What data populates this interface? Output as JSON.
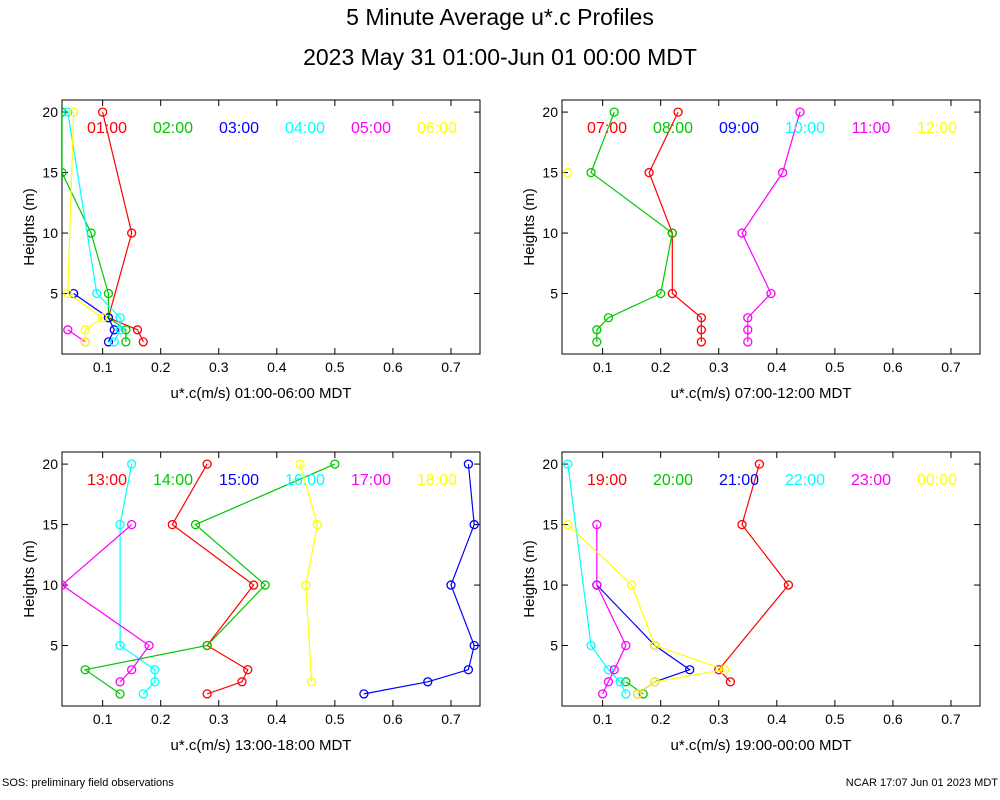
{
  "title": "5 Minute Average u*.c Profiles",
  "subtitle": "2023 May 31 01:00-Jun 01 00:00 MDT",
  "footer_left": "SOS: preliminary field observations",
  "footer_right": "NCAR 17:07 Jun 01 2023 MDT",
  "chart_data": [
    {
      "type": "line",
      "xlabel": "u*.c(m/s) 01:00-06:00 MDT",
      "ylabel": "Heights (m)",
      "xlim": [
        0.03,
        0.75
      ],
      "ylim": [
        0,
        21
      ],
      "xticks": [
        "0.1",
        "0.2",
        "0.3",
        "0.4",
        "0.5",
        "0.6",
        "0.7"
      ],
      "yticks": [
        "5",
        "10",
        "15",
        "20"
      ],
      "series": [
        {
          "name": "01:00",
          "color": "#ff0000",
          "points": [
            [
              0.17,
              1
            ],
            [
              0.16,
              2
            ],
            [
              0.11,
              3
            ],
            [
              0.15,
              10
            ],
            [
              0.1,
              20
            ]
          ]
        },
        {
          "name": "02:00",
          "color": "#00c800",
          "points": [
            [
              0.14,
              1
            ],
            [
              0.14,
              2
            ],
            [
              0.11,
              3
            ],
            [
              0.11,
              5
            ],
            [
              0.08,
              10
            ],
            [
              0.03,
              15
            ],
            [
              0.03,
              20
            ]
          ]
        },
        {
          "name": "03:00",
          "color": "#0000ff",
          "points": [
            [
              0.11,
              1
            ],
            [
              0.12,
              2
            ],
            [
              0.11,
              3
            ],
            [
              0.05,
              5
            ]
          ]
        },
        {
          "name": "04:00",
          "color": "#00ffff",
          "points": [
            [
              0.12,
              1
            ],
            [
              0.13,
              2
            ],
            [
              0.13,
              3
            ],
            [
              0.09,
              5
            ],
            [
              0.04,
              20
            ]
          ]
        },
        {
          "name": "05:00",
          "color": "#ff00ff",
          "points": [
            [
              0.07,
              1
            ],
            [
              0.04,
              2
            ]
          ]
        },
        {
          "name": "06:00",
          "color": "#ffff00",
          "points": [
            [
              0.07,
              1
            ],
            [
              0.07,
              2
            ],
            [
              0.1,
              3
            ],
            [
              0.04,
              5
            ],
            [
              0.05,
              20
            ]
          ]
        }
      ]
    },
    {
      "type": "line",
      "xlabel": "u*.c(m/s) 07:00-12:00 MDT",
      "ylabel": "Heights (m)",
      "xlim": [
        0.03,
        0.75
      ],
      "ylim": [
        0,
        21
      ],
      "xticks": [
        "0.1",
        "0.2",
        "0.3",
        "0.4",
        "0.5",
        "0.6",
        "0.7"
      ],
      "yticks": [
        "5",
        "10",
        "15",
        "20"
      ],
      "series": [
        {
          "name": "07:00",
          "color": "#ff0000",
          "points": [
            [
              0.27,
              1
            ],
            [
              0.27,
              2
            ],
            [
              0.27,
              3
            ],
            [
              0.22,
              5
            ],
            [
              0.22,
              10
            ],
            [
              0.18,
              15
            ],
            [
              0.23,
              20
            ]
          ]
        },
        {
          "name": "08:00",
          "color": "#00c800",
          "points": [
            [
              0.09,
              1
            ],
            [
              0.09,
              2
            ],
            [
              0.11,
              3
            ],
            [
              0.2,
              5
            ],
            [
              0.22,
              10
            ],
            [
              0.08,
              15
            ],
            [
              0.12,
              20
            ]
          ]
        },
        {
          "name": "09:00",
          "color": "#0000ff",
          "points": []
        },
        {
          "name": "10:00",
          "color": "#00ffff",
          "points": []
        },
        {
          "name": "11:00",
          "color": "#ff00ff",
          "points": [
            [
              0.35,
              1
            ],
            [
              0.35,
              2
            ],
            [
              0.35,
              3
            ],
            [
              0.39,
              5
            ],
            [
              0.34,
              10
            ],
            [
              0.41,
              15
            ],
            [
              0.44,
              20
            ]
          ]
        },
        {
          "name": "12:00",
          "color": "#ffff00",
          "points": [
            [
              0.04,
              15
            ]
          ]
        }
      ]
    },
    {
      "type": "line",
      "xlabel": "u*.c(m/s) 13:00-18:00 MDT",
      "ylabel": "Heights (m)",
      "xlim": [
        0.03,
        0.75
      ],
      "ylim": [
        0,
        21
      ],
      "xticks": [
        "0.1",
        "0.2",
        "0.3",
        "0.4",
        "0.5",
        "0.6",
        "0.7"
      ],
      "yticks": [
        "5",
        "10",
        "15",
        "20"
      ],
      "series": [
        {
          "name": "13:00",
          "color": "#ff0000",
          "points": [
            [
              0.28,
              1
            ],
            [
              0.34,
              2
            ],
            [
              0.35,
              3
            ],
            [
              0.28,
              5
            ],
            [
              0.36,
              10
            ],
            [
              0.22,
              15
            ],
            [
              0.28,
              20
            ]
          ]
        },
        {
          "name": "14:00",
          "color": "#00c800",
          "points": [
            [
              0.13,
              1
            ],
            [
              0.07,
              3
            ],
            [
              0.28,
              5
            ],
            [
              0.38,
              10
            ],
            [
              0.26,
              15
            ],
            [
              0.5,
              20
            ]
          ]
        },
        {
          "name": "15:00",
          "color": "#0000ff",
          "points": [
            [
              0.55,
              1
            ],
            [
              0.66,
              2
            ],
            [
              0.73,
              3
            ],
            [
              0.74,
              5
            ],
            [
              0.7,
              10
            ],
            [
              0.74,
              15
            ],
            [
              0.73,
              20
            ]
          ]
        },
        {
          "name": "16:00",
          "color": "#00ffff",
          "points": [
            [
              0.17,
              1
            ],
            [
              0.19,
              2
            ],
            [
              0.19,
              3
            ],
            [
              0.13,
              5
            ],
            [
              0.13,
              15
            ],
            [
              0.15,
              20
            ]
          ]
        },
        {
          "name": "17:00",
          "color": "#ff00ff",
          "points": [
            [
              0.13,
              2
            ],
            [
              0.15,
              3
            ],
            [
              0.18,
              5
            ],
            [
              0.03,
              10
            ],
            [
              0.15,
              15
            ]
          ]
        },
        {
          "name": "18:00",
          "color": "#ffff00",
          "points": [
            [
              0.46,
              2
            ],
            [
              0.45,
              10
            ],
            [
              0.47,
              15
            ],
            [
              0.44,
              20
            ]
          ]
        }
      ]
    },
    {
      "type": "line",
      "xlabel": "u*.c(m/s) 19:00-00:00 MDT",
      "ylabel": "Heights (m)",
      "xlim": [
        0.03,
        0.75
      ],
      "ylim": [
        0,
        21
      ],
      "xticks": [
        "0.1",
        "0.2",
        "0.3",
        "0.4",
        "0.5",
        "0.6",
        "0.7"
      ],
      "yticks": [
        "5",
        "10",
        "15",
        "20"
      ],
      "series": [
        {
          "name": "19:00",
          "color": "#ff0000",
          "points": [
            [
              0.32,
              2
            ],
            [
              0.3,
              3
            ],
            [
              0.42,
              10
            ],
            [
              0.34,
              15
            ],
            [
              0.37,
              20
            ]
          ]
        },
        {
          "name": "20:00",
          "color": "#00c800",
          "points": [
            [
              0.17,
              1
            ],
            [
              0.14,
              2
            ]
          ]
        },
        {
          "name": "21:00",
          "color": "#0000ff",
          "points": [
            [
              0.16,
              1
            ],
            [
              0.19,
              2
            ],
            [
              0.25,
              3
            ],
            [
              0.19,
              5
            ],
            [
              0.09,
              10
            ]
          ]
        },
        {
          "name": "22:00",
          "color": "#00ffff",
          "points": [
            [
              0.14,
              1
            ],
            [
              0.13,
              2
            ],
            [
              0.11,
              3
            ],
            [
              0.08,
              5
            ],
            [
              0.04,
              20
            ]
          ]
        },
        {
          "name": "23:00",
          "color": "#ff00ff",
          "points": [
            [
              0.1,
              1
            ],
            [
              0.11,
              2
            ],
            [
              0.12,
              3
            ],
            [
              0.14,
              5
            ],
            [
              0.09,
              10
            ],
            [
              0.09,
              15
            ]
          ]
        },
        {
          "name": "00:00",
          "color": "#ffff00",
          "points": [
            [
              0.16,
              1
            ],
            [
              0.19,
              2
            ],
            [
              0.31,
              3
            ],
            [
              0.19,
              5
            ],
            [
              0.15,
              10
            ],
            [
              0.04,
              15
            ]
          ]
        }
      ]
    }
  ]
}
